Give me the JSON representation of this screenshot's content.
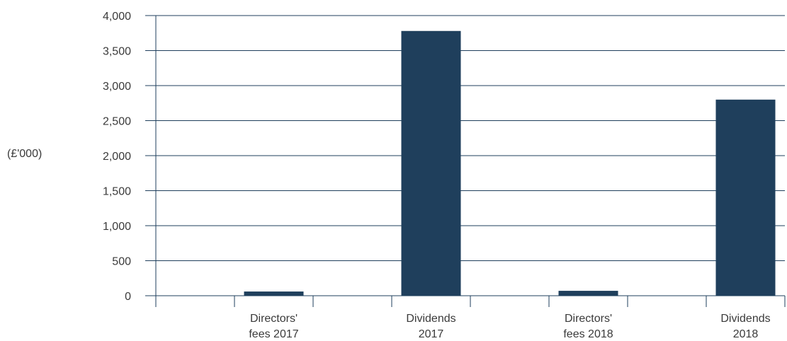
{
  "chart_data": {
    "type": "bar",
    "ylabel": "(£'000)",
    "categories": [
      [
        "Directors'",
        "fees 2017"
      ],
      [
        "Dividends",
        "2017"
      ],
      [
        "Directors'",
        "fees 2018"
      ],
      [
        "Dividends",
        "2018"
      ]
    ],
    "values": [
      60,
      3780,
      70,
      2800
    ],
    "ylim": [
      0,
      4000
    ],
    "yticks": [
      "0",
      "500",
      "1,000",
      "1,500",
      "2,000",
      "2,500",
      "3,000",
      "3,500",
      "4,000"
    ],
    "ytick_values": [
      0,
      500,
      1000,
      1500,
      2000,
      2500,
      3000,
      3500,
      4000
    ],
    "grid": true,
    "legend": "none",
    "colors": {
      "bar": "#1f3f5c",
      "grid": "#1f3f5c",
      "text": "#3a3a3a"
    }
  }
}
